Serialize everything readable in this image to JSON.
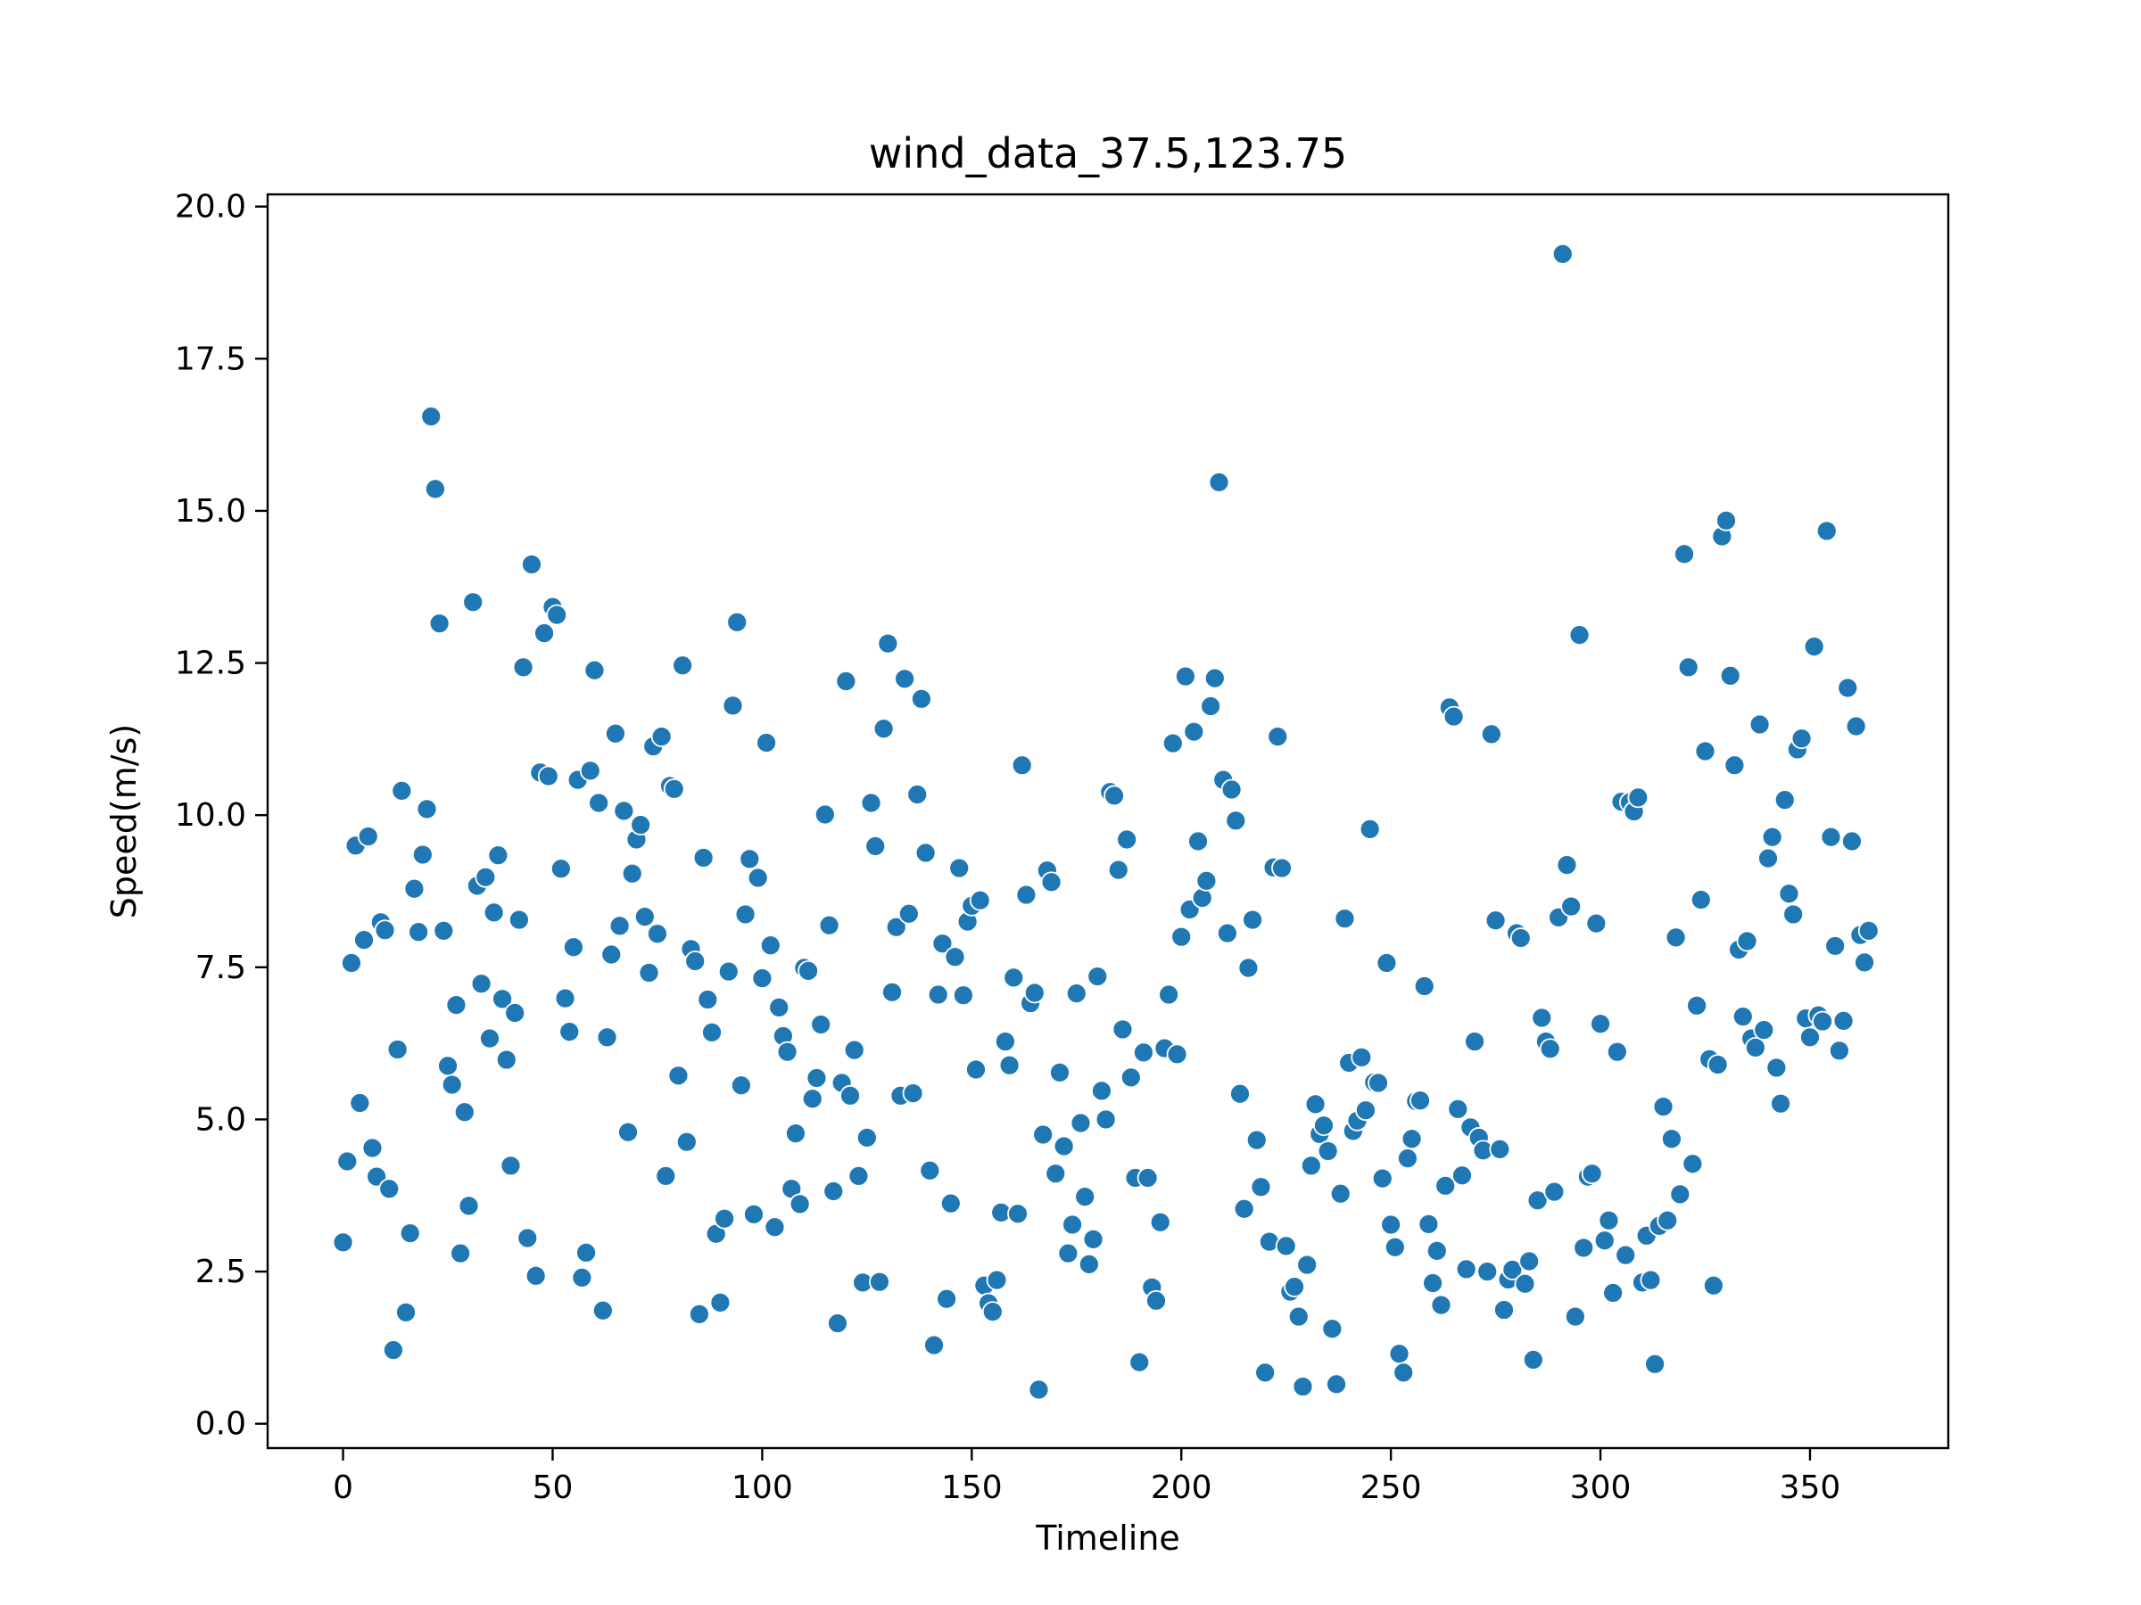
{
  "chart_data": {
    "type": "scatter",
    "title": "wind_data_37.5,123.75",
    "xlabel": "Timeline",
    "ylabel": "Speed(m/s)",
    "xlim": [
      -18,
      383
    ],
    "ylim": [
      -0.4,
      20.2
    ],
    "xticks": [
      0,
      50,
      100,
      150,
      200,
      250,
      300,
      350
    ],
    "xtick_labels": [
      "0",
      "50",
      "100",
      "150",
      "200",
      "250",
      "300",
      "350"
    ],
    "yticks": [
      0.0,
      2.5,
      5.0,
      7.5,
      10.0,
      12.5,
      15.0,
      17.5,
      20.0
    ],
    "ytick_labels": [
      "0.0",
      "2.5",
      "5.0",
      "7.5",
      "10.0",
      "12.5",
      "15.0",
      "17.5",
      "20.0"
    ],
    "grid": false,
    "legend": "none",
    "marker_color": "#1f77b4",
    "marker_edge_color": "#ffffff",
    "series": [
      {
        "x": [
          0,
          1,
          2,
          3,
          4,
          5,
          6,
          7,
          8,
          9,
          10,
          11,
          12,
          13,
          14,
          15,
          16,
          17,
          18,
          19,
          20,
          21,
          22,
          23,
          24,
          25,
          26,
          27,
          28,
          29,
          30,
          31,
          32,
          33,
          34,
          35,
          36,
          37,
          38,
          39,
          40,
          41,
          42,
          43,
          44,
          45,
          46,
          47,
          48,
          49,
          50,
          51,
          52,
          53,
          54,
          55,
          56,
          57,
          58,
          59,
          60,
          61,
          62,
          63,
          64,
          65,
          66,
          67,
          68,
          69,
          70,
          71,
          72,
          73,
          74,
          75,
          76,
          77,
          78,
          79,
          80,
          81,
          82,
          83,
          84,
          85,
          86,
          87,
          88,
          89,
          90,
          91,
          92,
          93,
          94,
          95,
          96,
          97,
          98,
          99,
          100,
          101,
          102,
          103,
          104,
          105,
          106,
          107,
          108,
          109,
          110,
          111,
          112,
          113,
          114,
          115,
          116,
          117,
          118,
          119,
          120,
          121,
          122,
          123,
          124,
          125,
          126,
          127,
          128,
          129,
          130,
          131,
          132,
          133,
          134,
          135,
          136,
          137,
          138,
          139,
          140,
          141,
          142,
          143,
          144,
          145,
          146,
          147,
          148,
          149,
          150,
          151,
          152,
          153,
          154,
          155,
          156,
          157,
          158,
          159,
          160,
          161,
          162,
          163,
          164,
          165,
          166,
          167,
          168,
          169,
          170,
          171,
          172,
          173,
          174,
          175,
          176,
          177,
          178,
          179,
          180,
          181,
          182,
          183,
          184,
          185,
          186,
          187,
          188,
          189,
          190,
          191,
          192,
          193,
          194,
          195,
          196,
          197,
          198,
          199,
          200,
          201,
          202,
          203,
          204,
          205,
          206,
          207,
          208,
          209,
          210,
          211,
          212,
          213,
          214,
          215,
          216,
          217,
          218,
          219,
          220,
          221,
          222,
          223,
          224,
          225,
          226,
          227,
          228,
          229,
          230,
          231,
          232,
          233,
          234,
          235,
          236,
          237,
          238,
          239,
          240,
          241,
          242,
          243,
          244,
          245,
          246,
          247,
          248,
          249,
          250,
          251,
          252,
          253,
          254,
          255,
          256,
          257,
          258,
          259,
          260,
          261,
          262,
          263,
          264,
          265,
          266,
          267,
          268,
          269,
          270,
          271,
          272,
          273,
          274,
          275,
          276,
          277,
          278,
          279,
          280,
          281,
          282,
          283,
          284,
          285,
          286,
          287,
          288,
          289,
          290,
          291,
          292,
          293,
          294,
          295,
          296,
          297,
          298,
          299,
          300,
          301,
          302,
          303,
          304,
          305,
          306,
          307,
          308,
          309,
          310,
          311,
          312,
          313,
          314,
          315,
          316,
          317,
          318,
          319,
          320,
          321,
          322,
          323,
          324,
          325,
          326,
          327,
          328,
          329,
          330,
          331,
          332,
          333,
          334,
          335,
          336,
          337,
          338,
          339,
          340,
          341,
          342,
          343,
          344,
          345,
          346,
          347,
          348,
          349,
          350,
          351,
          352,
          353,
          354,
          355,
          356,
          357,
          358,
          359,
          360,
          361,
          362,
          363,
          364
        ],
        "y": [
          2.98,
          4.31,
          7.57,
          9.5,
          5.27,
          7.95,
          9.65,
          4.53,
          4.06,
          8.24,
          8.11,
          3.86,
          1.21,
          6.15,
          10.4,
          1.83,
          3.13,
          8.79,
          8.08,
          9.35,
          10.1,
          16.55,
          15.36,
          13.15,
          8.1,
          5.88,
          5.57,
          6.88,
          2.8,
          5.12,
          3.58,
          13.5,
          8.84,
          7.23,
          8.98,
          6.33,
          8.4,
          9.34,
          6.98,
          5.98,
          4.24,
          6.75,
          8.28,
          12.43,
          3.05,
          14.12,
          2.43,
          10.7,
          12.99,
          10.64,
          13.42,
          13.29,
          9.12,
          6.99,
          6.44,
          7.83,
          10.58,
          2.4,
          2.81,
          10.73,
          12.38,
          10.2,
          1.86,
          6.35,
          7.71,
          11.34,
          8.18,
          10.07,
          4.79,
          9.04,
          9.6,
          9.84,
          8.33,
          7.41,
          11.13,
          8.05,
          11.29,
          4.07,
          10.48,
          10.43,
          5.72,
          12.46,
          4.63,
          7.8,
          7.6,
          1.8,
          9.3,
          6.97,
          6.43,
          3.12,
          1.99,
          3.37,
          7.43,
          11.8,
          13.17,
          5.56,
          8.37,
          9.28,
          3.44,
          8.97,
          7.32,
          11.19,
          7.86,
          3.23,
          6.84,
          6.37,
          6.11,
          3.86,
          4.77,
          3.61,
          7.49,
          7.44,
          5.34,
          5.68,
          6.56,
          10.01,
          8.19,
          3.82,
          1.65,
          5.6,
          12.2,
          5.39,
          6.14,
          4.07,
          2.32,
          4.7,
          10.2,
          9.49,
          2.33,
          11.42,
          12.82,
          7.09,
          8.16,
          5.39,
          12.24,
          8.38,
          5.43,
          10.34,
          11.91,
          9.38,
          4.16,
          1.29,
          7.05,
          7.89,
          2.05,
          3.62,
          7.67,
          9.13,
          7.04,
          8.25,
          8.51,
          5.82,
          8.6,
          2.27,
          1.98,
          1.84,
          2.36,
          3.47,
          6.28,
          5.89,
          7.33,
          3.45,
          10.82,
          8.69,
          6.91,
          7.08,
          0.56,
          4.75,
          9.09,
          8.9,
          4.11,
          5.77,
          4.56,
          2.8,
          3.27,
          7.07,
          4.94,
          3.73,
          2.62,
          3.03,
          7.35,
          5.47,
          5.0,
          10.38,
          10.32,
          9.1,
          6.48,
          9.6,
          5.69,
          4.04,
          1.01,
          6.1,
          4.04,
          2.24,
          2.02,
          3.31,
          6.17,
          7.05,
          11.18,
          6.07,
          8.0,
          12.28,
          8.45,
          11.37,
          9.57,
          8.64,
          8.92,
          11.79,
          12.25,
          15.47,
          10.58,
          8.06,
          10.42,
          9.91,
          5.42,
          3.53,
          7.49,
          8.28,
          4.66,
          3.89,
          0.84,
          2.99,
          9.14,
          11.29,
          9.13,
          2.92,
          2.17,
          2.25,
          1.76,
          0.61,
          2.61,
          4.24,
          5.25,
          4.76,
          4.9,
          4.48,
          1.56,
          0.65,
          3.78,
          8.3,
          5.93,
          4.81,
          4.98,
          6.02,
          5.15,
          9.77,
          5.61,
          5.6,
          4.03,
          7.57,
          3.27,
          2.9,
          1.15,
          0.84,
          4.36,
          4.68,
          5.3,
          5.31,
          7.19,
          3.28,
          2.31,
          2.84,
          1.95,
          3.91,
          11.77,
          11.62,
          5.17,
          4.08,
          2.54,
          4.87,
          6.28,
          4.7,
          4.49,
          2.5,
          11.33,
          8.27,
          4.51,
          1.87,
          2.37,
          2.53,
          8.06,
          7.98,
          2.3,
          2.67,
          1.05,
          3.67,
          6.67,
          6.28,
          6.16,
          3.81,
          8.32,
          19.22,
          9.18,
          8.5,
          1.76,
          12.96,
          2.89,
          4.06,
          4.11,
          8.22,
          6.57,
          3.01,
          3.34,
          2.15,
          6.11,
          10.22,
          2.77,
          10.21,
          10.06,
          10.29,
          2.32,
          3.09,
          2.36,
          0.98,
          3.25,
          5.21,
          3.34,
          4.68,
          7.99,
          3.77,
          14.29,
          12.43,
          4.27,
          6.87,
          8.61,
          11.05,
          5.99,
          2.27,
          5.9,
          14.58,
          14.84,
          12.29,
          10.82,
          7.79,
          6.69,
          7.93,
          6.33,
          6.18,
          11.49,
          6.47,
          9.29,
          9.64,
          5.85,
          5.26,
          10.25,
          8.71,
          8.37,
          11.08,
          11.26,
          6.66,
          6.35,
          12.77,
          6.71,
          6.61,
          14.67,
          9.64,
          7.85,
          6.13,
          6.62,
          12.09,
          9.57,
          11.46,
          8.03,
          7.58,
          8.1
        ]
      }
    ]
  }
}
